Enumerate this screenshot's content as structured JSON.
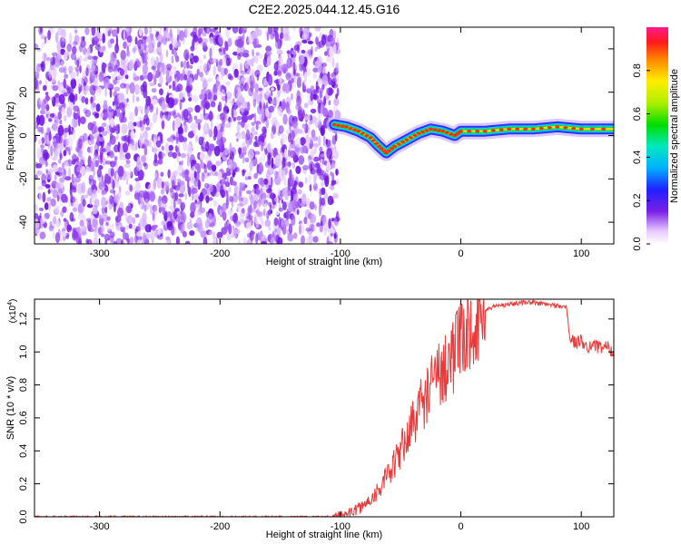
{
  "figure_title": "C2E2.2025.044.12.45.G16",
  "colors": {
    "snr_line": "#e83a3a",
    "spectro_noise": "#7a1fe6",
    "axis": "#000000"
  },
  "chart_data": [
    {
      "type": "heatmap",
      "title": "C2E2.2025.044.12.45.G16",
      "xlabel": "Height of straight line (km)",
      "ylabel": "Frequency (Hz)",
      "xlim": [
        -354,
        127
      ],
      "ylim": [
        -50,
        50
      ],
      "x_ticks": [
        -300,
        -200,
        -100,
        0,
        100
      ],
      "y_ticks": [
        -40,
        -20,
        0,
        20,
        40
      ],
      "x_tick_labels": [
        "-300",
        "-200",
        "-100",
        "0",
        "100"
      ],
      "y_tick_labels": [
        "-40",
        "-20",
        "0",
        "20",
        "40"
      ],
      "noise_region_x": [
        -354,
        -105
      ],
      "signal_ridge": {
        "x": [
          -105,
          -95,
          -85,
          -75,
          -68,
          -62,
          -55,
          -45,
          -35,
          -25,
          -15,
          -5,
          0,
          20,
          40,
          60,
          80,
          100,
          127
        ],
        "freq": [
          5,
          4,
          2,
          -1,
          -5,
          -8,
          -5,
          -2,
          1,
          3,
          2,
          0,
          2,
          2,
          3,
          3,
          4,
          3,
          3
        ]
      },
      "colorbar": {
        "label": "Normalized spectral amplitude",
        "range": [
          0,
          1
        ],
        "ticks": [
          0.0,
          0.2,
          0.4,
          0.6,
          0.8
        ],
        "tick_labels": [
          "0.0",
          "0.2",
          "0.4",
          "0.6",
          "0.8"
        ]
      }
    },
    {
      "type": "line",
      "xlabel": "Height of straight line (km)",
      "ylabel": "SNR (10 * v/v)",
      "multiplier_label": "(x10",
      "multiplier_exp": "4",
      "xlim": [
        -354,
        127
      ],
      "ylim": [
        0,
        1.32
      ],
      "x_ticks": [
        -300,
        -200,
        -100,
        0,
        100
      ],
      "y_ticks": [
        0.0,
        0.2,
        0.4,
        0.6,
        0.8,
        1.0,
        1.2
      ],
      "x_tick_labels": [
        "-300",
        "-200",
        "-100",
        "0",
        "100"
      ],
      "y_tick_labels": [
        "0.0",
        "0.2",
        "0.4",
        "0.6",
        "0.8",
        "1.0",
        "1.2"
      ],
      "series": [
        {
          "name": "SNR",
          "x": [
            -354,
            -300,
            -250,
            -200,
            -150,
            -110,
            -100,
            -90,
            -80,
            -70,
            -60,
            -55,
            -50,
            -45,
            -40,
            -35,
            -30,
            -25,
            -20,
            -15,
            -10,
            -5,
            0,
            5,
            10,
            15,
            20,
            25,
            30,
            40,
            50,
            60,
            70,
            80,
            88,
            90,
            95,
            100,
            105,
            110,
            115,
            120,
            127
          ],
          "y": [
            0.0,
            0.0,
            0.0,
            0.0,
            0.0,
            0.0,
            0.01,
            0.03,
            0.07,
            0.15,
            0.25,
            0.32,
            0.4,
            0.48,
            0.57,
            0.65,
            0.72,
            0.78,
            0.85,
            0.9,
            0.95,
            1.0,
            1.05,
            1.1,
            1.15,
            1.2,
            1.25,
            1.27,
            1.28,
            1.29,
            1.3,
            1.3,
            1.29,
            1.28,
            1.27,
            1.1,
            1.05,
            1.07,
            1.03,
            1.05,
            1.02,
            1.04,
            1.0
          ]
        }
      ]
    }
  ]
}
